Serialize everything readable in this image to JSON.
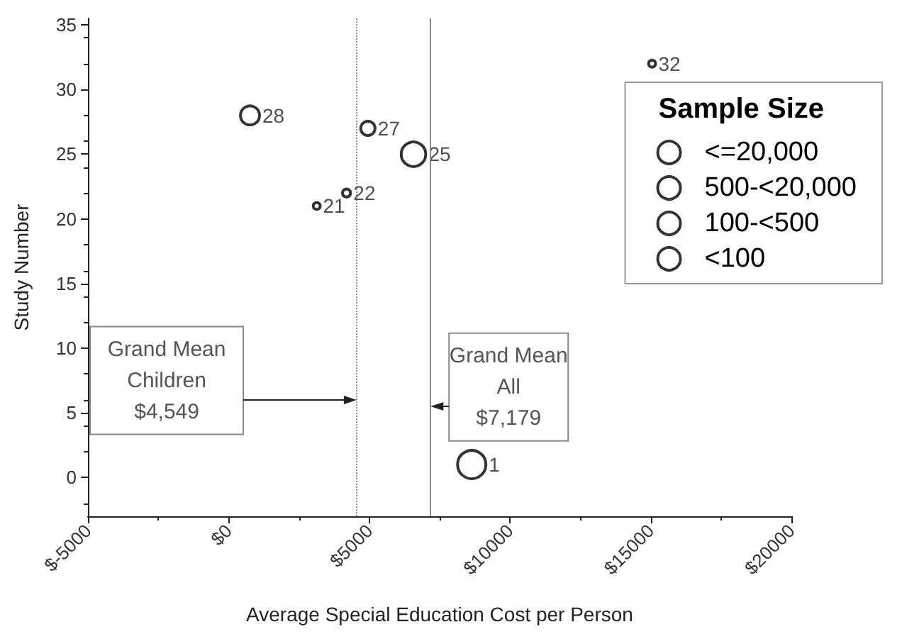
{
  "chart_data": {
    "type": "bubble",
    "xlabel": "Average Special Education Cost per Person",
    "ylabel": "Study Number",
    "legend_title": "Sample Size",
    "xlim": [
      -5000,
      20000
    ],
    "xticks": [
      {
        "value": -5000,
        "label": "$-5000"
      },
      {
        "value": 0,
        "label": "$0"
      },
      {
        "value": 5000,
        "label": "$5000"
      },
      {
        "value": 10000,
        "label": "$10000"
      },
      {
        "value": 15000,
        "label": "$15000"
      },
      {
        "value": 20000,
        "label": "$20000"
      }
    ],
    "ylim": [
      -3,
      35.5
    ],
    "yticks": [
      0,
      5,
      10,
      15,
      20,
      25,
      30,
      35
    ],
    "grid": false,
    "legend": "top right",
    "marker": "circle",
    "series": [
      {
        "name": "<=20,000",
        "color": "#000000",
        "x": [
          8640,
          6570
        ],
        "values": [
          1,
          25
        ],
        "sizes": [
          1,
          0.75
        ],
        "value_labels": [
          "1",
          "25"
        ]
      },
      {
        "name": "500-<20,000",
        "color": "#000000",
        "x": [
          760
        ],
        "values": [
          28
        ],
        "sizes": [
          0.45
        ],
        "value_labels": [
          "28"
        ]
      },
      {
        "name": "100-<500",
        "color": "#000000",
        "x": [
          4950
        ],
        "values": [
          27
        ],
        "sizes": [
          0.25
        ],
        "value_labels": [
          "27"
        ]
      },
      {
        "name": "<100",
        "color": "#000000",
        "x": [
          3130,
          4190,
          15050
        ],
        "values": [
          21,
          22,
          32
        ],
        "sizes": [
          0.06,
          0.08,
          0.06
        ],
        "value_labels": [
          "21",
          "22",
          "32"
        ]
      }
    ],
    "ref_lines": [
      {
        "axis": "x",
        "value": 4549,
        "label": "Grand Mean\nChildren\n$4,549",
        "line_style": "dotted",
        "color": "#888888"
      },
      {
        "axis": "x",
        "value": 7179,
        "label": "Grand Mean\nAll\n$7,179",
        "line_style": "solid",
        "color": "#888888"
      }
    ]
  }
}
